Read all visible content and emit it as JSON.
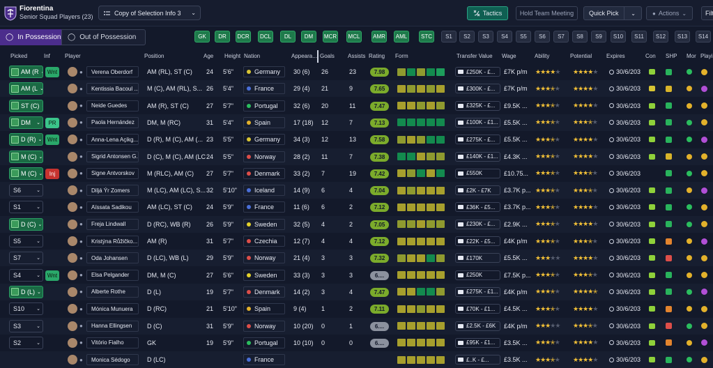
{
  "header": {
    "club_name": "Fiorentina",
    "squad_name": "Senior Squad Players (23)",
    "view_select": "Copy of Selection Info 3",
    "tactics": "Tactics",
    "team_meeting": "Hold Team Meeting",
    "quick_pick": "Quick Pick",
    "actions": "Actions",
    "filter": "Filt",
    "colors": {
      "background": "#13192a",
      "accent_purple": "#4b2d8c",
      "accent_green": "#1e7a4b"
    }
  },
  "possession": {
    "in": "In Possession",
    "out": "Out of Possession"
  },
  "positions": [
    "GK",
    "DR",
    "DCR",
    "DCL",
    "DL",
    "DM",
    "MCR",
    "MCL",
    "AMR",
    "AML",
    "STC"
  ],
  "slots": [
    "S1",
    "S2",
    "S3",
    "S4",
    "S5",
    "S6",
    "S7",
    "S8",
    "S9",
    "S10",
    "S11",
    "S12",
    "S13",
    "S14"
  ],
  "columns": {
    "picked": "Picked",
    "inf": "Inf",
    "player": "Player",
    "position": "Position",
    "age": "Age",
    "height": "Height",
    "nation": "Nation",
    "appearances": "Appeara...",
    "goals": "Goals",
    "assists": "Assists",
    "rating": "Rating",
    "form": "Form",
    "transfer_value": "Transfer Value",
    "wage": "Wage",
    "ability": "Ability",
    "potential": "Potential",
    "expires": "Expires",
    "con": "Con",
    "shp": "SHP",
    "mor": "Mor",
    "playing": "Playi"
  },
  "players": [
    {
      "picked": "AM (R",
      "inf": "Wnt",
      "name": "Verena Oberdorf",
      "position": "AM (RL), ST (C)",
      "age": "24",
      "height": "5'6\"",
      "nation": "Germany",
      "apps": "30 (6)",
      "goals": "26",
      "assists": "23",
      "rating": "7.98",
      "value": "£250K - £...",
      "wage": "£7K p/m",
      "expires": "30/6/203"
    },
    {
      "picked": "AM (L",
      "inf": "",
      "name": "Kentissia Bacoul ...",
      "position": "M (C), AM (RL), S...",
      "age": "26",
      "height": "5'4\"",
      "nation": "France",
      "apps": "29 (4)",
      "goals": "21",
      "assists": "9",
      "rating": "7.65",
      "value": "£300K - £...",
      "wage": "£7K p/m",
      "expires": "30/6/203"
    },
    {
      "picked": "ST (C)",
      "inf": "",
      "name": "Neide Guedes",
      "position": "AM (R), ST (C)",
      "age": "27",
      "height": "5'7\"",
      "nation": "Portugal",
      "apps": "32 (6)",
      "goals": "20",
      "assists": "11",
      "rating": "7.47",
      "value": "£325K - £...",
      "wage": "£9.5K ...",
      "expires": "30/6/203"
    },
    {
      "picked": "DM",
      "inf": "PR",
      "name": "Paola Hernández",
      "position": "DM, M (RC)",
      "age": "31",
      "height": "5'4\"",
      "nation": "Spain",
      "apps": "17 (18)",
      "goals": "12",
      "assists": "7",
      "rating": "7.13",
      "value": "£100K - £1...",
      "wage": "£5.5K ...",
      "expires": "30/6/203"
    },
    {
      "picked": "D (R)",
      "inf": "Wnt",
      "name": "Anna-Lena Açikg...",
      "position": "D (R), M (C), AM (...",
      "age": "23",
      "height": "5'5\"",
      "nation": "Germany",
      "apps": "34 (3)",
      "goals": "12",
      "assists": "13",
      "rating": "7.58",
      "value": "£275K - £...",
      "wage": "£5.5K ...",
      "expires": "30/6/203"
    },
    {
      "picked": "M (C)",
      "inf": "",
      "name": "Sigrid Antonsen G...",
      "position": "D (C), M (C), AM (LC)",
      "age": "24",
      "height": "5'5\"",
      "nation": "Norway",
      "apps": "28 (2)",
      "goals": "11",
      "assists": "7",
      "rating": "7.38",
      "value": "£140K - £1...",
      "wage": "£4.3K ...",
      "expires": "30/6/203"
    },
    {
      "picked": "M (C)",
      "inf": "Inj",
      "name": "Signe Antvorskov",
      "position": "M (RLC), AM (C)",
      "age": "27",
      "height": "5'7\"",
      "nation": "Denmark",
      "apps": "33 (2)",
      "goals": "7",
      "assists": "19",
      "rating": "7.42",
      "value": "£550K",
      "wage": "£10.75...",
      "expires": "30/6/203"
    },
    {
      "picked": "S6",
      "inf": "",
      "name": "Diljá Ýr Zomers",
      "position": "M (LC), AM (LC), S...",
      "age": "32",
      "height": "5'10\"",
      "nation": "Iceland",
      "apps": "14 (9)",
      "goals": "6",
      "assists": "4",
      "rating": "7.04",
      "value": "£2K - £7K",
      "wage": "£3.7K p...",
      "expires": "30/6/203"
    },
    {
      "picked": "S1",
      "inf": "",
      "name": "Aïssata Sadikou",
      "position": "AM (LC), ST (C)",
      "age": "24",
      "height": "5'9\"",
      "nation": "France",
      "apps": "11 (6)",
      "goals": "6",
      "assists": "2",
      "rating": "7.12",
      "value": "£36K - £5...",
      "wage": "£3.7K p...",
      "expires": "30/6/203"
    },
    {
      "picked": "D (C)",
      "inf": "",
      "name": "Freja Lindwall",
      "position": "D (RC), WB (R)",
      "age": "26",
      "height": "5'9\"",
      "nation": "Sweden",
      "apps": "32 (5)",
      "goals": "4",
      "assists": "2",
      "rating": "7.05",
      "value": "£230K - £...",
      "wage": "£2.9K ...",
      "expires": "30/6/203"
    },
    {
      "picked": "S5",
      "inf": "",
      "name": "Kristýna Růžičko...",
      "position": "AM (R)",
      "age": "31",
      "height": "5'7\"",
      "nation": "Czechia",
      "apps": "12 (7)",
      "goals": "4",
      "assists": "4",
      "rating": "7.12",
      "value": "£22K - £5...",
      "wage": "£4K p/m",
      "expires": "30/6/203"
    },
    {
      "picked": "S7",
      "inf": "",
      "name": "Oda Johansen",
      "position": "D (LC), WB (L)",
      "age": "29",
      "height": "5'9\"",
      "nation": "Norway",
      "apps": "21 (4)",
      "goals": "3",
      "assists": "3",
      "rating": "7.32",
      "value": "£170K",
      "wage": "£5.5K ...",
      "expires": "30/6/203"
    },
    {
      "picked": "S4",
      "inf": "Wnt",
      "name": "Elsa Pelgander",
      "position": "DM, M (C)",
      "age": "27",
      "height": "5'6\"",
      "nation": "Sweden",
      "apps": "33 (3)",
      "goals": "3",
      "assists": "3",
      "rating": "6....",
      "value": "£250K",
      "wage": "£7.5K p...",
      "expires": "30/6/203"
    },
    {
      "picked": "D (L)",
      "inf": "",
      "name": "Alberte Rothe",
      "position": "D (L)",
      "age": "19",
      "height": "5'7\"",
      "nation": "Denmark",
      "apps": "14 (2)",
      "goals": "3",
      "assists": "4",
      "rating": "7.47",
      "value": "£275K - £1...",
      "wage": "£4K p/m",
      "expires": "30/6/203"
    },
    {
      "picked": "S10",
      "inf": "",
      "name": "Mónica Munuera",
      "position": "D (RC)",
      "age": "21",
      "height": "5'10\"",
      "nation": "Spain",
      "apps": "9 (4)",
      "goals": "1",
      "assists": "2",
      "rating": "7.11",
      "value": "£70K - £1...",
      "wage": "£4.5K ...",
      "expires": "30/6/203"
    },
    {
      "picked": "S3",
      "inf": "",
      "name": "Hanna Ellingsen",
      "position": "D (C)",
      "age": "31",
      "height": "5'9\"",
      "nation": "Norway",
      "apps": "10 (20)",
      "goals": "0",
      "assists": "1",
      "rating": "6....",
      "value": "£2.5K - £6K",
      "wage": "£4K p/m",
      "expires": "30/6/203"
    },
    {
      "picked": "S2",
      "inf": "",
      "name": "Vitório Fialho",
      "position": "GK",
      "age": "19",
      "height": "5'9\"",
      "nation": "Portugal",
      "apps": "10 (10)",
      "goals": "0",
      "assists": "0",
      "rating": "6....",
      "value": "£95K - £1...",
      "wage": "£3.5K ...",
      "expires": "30/6/203"
    },
    {
      "picked": "",
      "inf": "",
      "name": "Monica Sédogo",
      "position": "D (LC)",
      "age": "",
      "height": "",
      "nation": "France",
      "apps": "",
      "goals": "",
      "assists": "",
      "rating": "",
      "value": "£..K - £...",
      "wage": "£3.5K ...",
      "expires": "30/6/203"
    }
  ]
}
